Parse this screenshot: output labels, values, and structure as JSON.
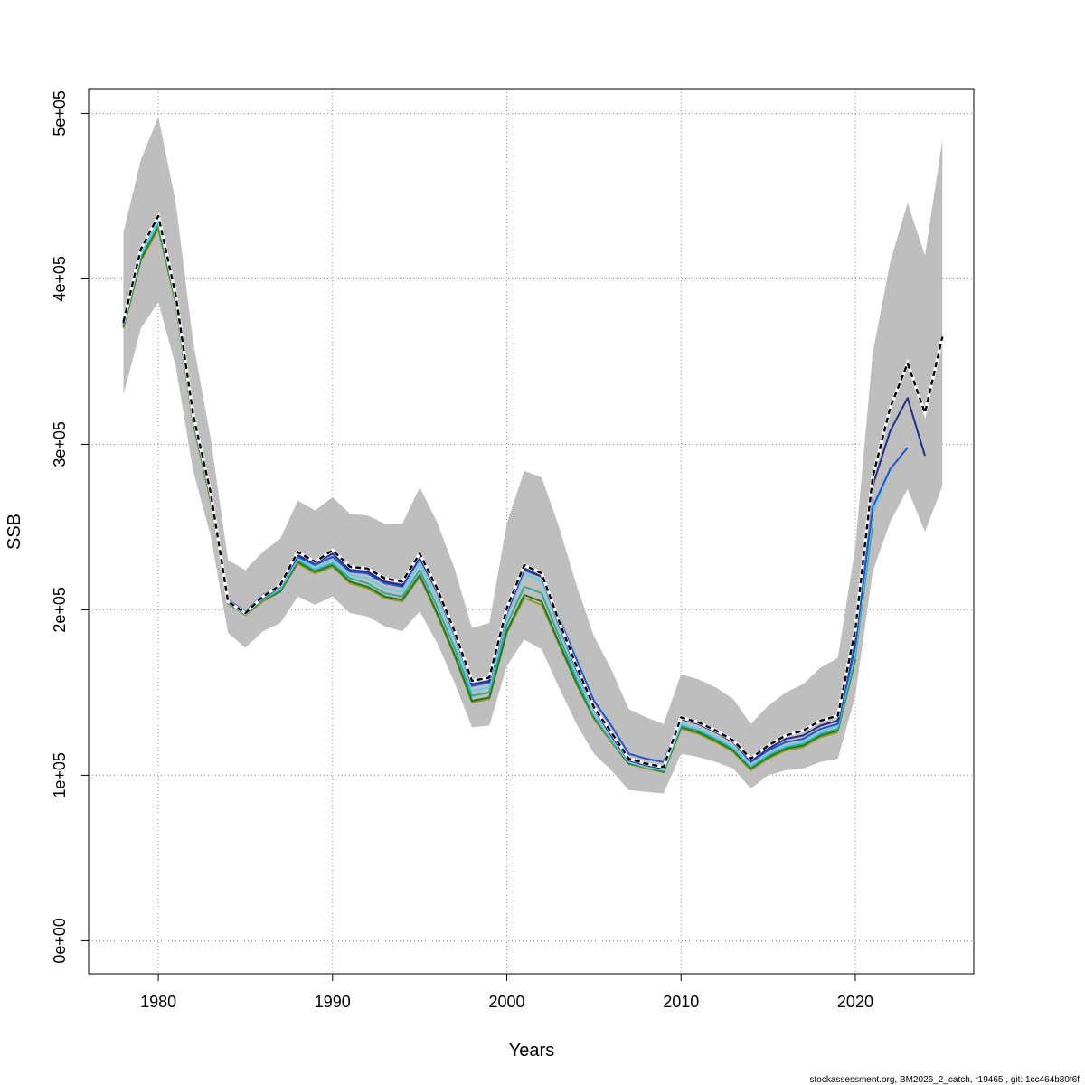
{
  "chart_data": {
    "type": "line",
    "title": "",
    "xlabel": "Years",
    "ylabel": "SSB",
    "xlim": [
      1976,
      2026.8
    ],
    "ylim": [
      -20000,
      515000
    ],
    "x_ticks": [
      1980,
      1990,
      2000,
      2010,
      2020
    ],
    "x_tick_labels": [
      "1980",
      "1990",
      "2000",
      "2010",
      "2020"
    ],
    "y_ticks": [
      0,
      100000,
      200000,
      300000,
      400000,
      500000
    ],
    "y_tick_labels": [
      "0e+00",
      "1e+05",
      "2e+05",
      "3e+05",
      "4e+05",
      "5e+05"
    ],
    "grid": true,
    "footer": "stockassessment.org, BM2026_2_catch, r19465 , git: 1cc464b80f6f",
    "confidence_band": {
      "name": "confidence interval",
      "color": "#bebebe",
      "x": [
        1978,
        1979,
        1980,
        1981,
        1982,
        1983,
        1984,
        1985,
        1986,
        1987,
        1988,
        1989,
        1990,
        1991,
        1992,
        1993,
        1994,
        1995,
        1996,
        1997,
        1998,
        1999,
        2000,
        2001,
        2002,
        2003,
        2004,
        2005,
        2006,
        2007,
        2008,
        2009,
        2010,
        2011,
        2012,
        2013,
        2014,
        2015,
        2016,
        2017,
        2018,
        2019,
        2020,
        2021,
        2022,
        2023,
        2024,
        2025
      ],
      "upper": [
        428000,
        472000,
        498000,
        446000,
        362000,
        304000,
        230000,
        224000,
        235000,
        243000,
        266000,
        260000,
        268000,
        258000,
        257000,
        252000,
        252000,
        274000,
        253000,
        225000,
        189000,
        192000,
        252000,
        284000,
        280000,
        250000,
        215000,
        184000,
        164000,
        140000,
        135000,
        131000,
        161000,
        158000,
        153000,
        146000,
        131000,
        142000,
        150000,
        155000,
        165000,
        171000,
        238000,
        355000,
        410000,
        446000,
        414000,
        484000
      ],
      "lower": [
        330000,
        370000,
        386000,
        347000,
        284000,
        245000,
        186000,
        177000,
        187000,
        192000,
        208000,
        203000,
        208000,
        198000,
        196000,
        190000,
        187000,
        199000,
        180000,
        156000,
        129000,
        130000,
        166000,
        182000,
        176000,
        153000,
        131000,
        113000,
        103000,
        91000,
        90000,
        89000,
        113000,
        111000,
        108000,
        104000,
        92000,
        100000,
        103000,
        104000,
        108000,
        110000,
        148000,
        223000,
        253000,
        273000,
        247000,
        275000
      ]
    },
    "series": [
      {
        "name": "estimate",
        "color": "#000000",
        "dash": "6,4",
        "x": [
          1978,
          1979,
          1980,
          1981,
          1982,
          1983,
          1984,
          1985,
          1986,
          1987,
          1988,
          1989,
          1990,
          1991,
          1992,
          1993,
          1994,
          1995,
          1996,
          1997,
          1998,
          1999,
          2000,
          2001,
          2002,
          2003,
          2004,
          2005,
          2006,
          2007,
          2008,
          2009,
          2010,
          2011,
          2012,
          2013,
          2014,
          2015,
          2016,
          2017,
          2018,
          2019,
          2020,
          2021,
          2022,
          2023,
          2024,
          2025
        ],
        "values": [
          374000,
          418000,
          438000,
          390000,
          318000,
          271000,
          205000,
          198000,
          208000,
          215000,
          235000,
          229000,
          236000,
          226000,
          225000,
          219000,
          217000,
          234000,
          213000,
          187000,
          157000,
          159000,
          201000,
          227000,
          222000,
          193000,
          166000,
          141000,
          126000,
          110000,
          107000,
          105000,
          135000,
          132000,
          127000,
          121000,
          110000,
          118000,
          124000,
          127000,
          133000,
          136000,
          188000,
          280000,
          322000,
          349000,
          319000,
          365000
        ]
      },
      {
        "name": "retro -1",
        "color": "#2a2a88",
        "dash": "",
        "x": [
          1978,
          1979,
          1980,
          1981,
          1982,
          1983,
          1984,
          1985,
          1986,
          1987,
          1988,
          1989,
          1990,
          1991,
          1992,
          1993,
          1994,
          1995,
          1996,
          1997,
          1998,
          1999,
          2000,
          2001,
          2002,
          2003,
          2004,
          2005,
          2006,
          2007,
          2008,
          2009,
          2010,
          2011,
          2012,
          2013,
          2014,
          2015,
          2016,
          2017,
          2018,
          2019,
          2020,
          2021,
          2022,
          2023,
          2024
        ],
        "values": [
          373000,
          417000,
          437000,
          389000,
          317000,
          270000,
          205000,
          198000,
          207000,
          214000,
          233000,
          228000,
          234000,
          224000,
          223000,
          217000,
          215000,
          232000,
          211000,
          185000,
          155000,
          157000,
          199000,
          225000,
          220000,
          191000,
          164000,
          140000,
          124000,
          109000,
          106000,
          104000,
          134000,
          131000,
          126000,
          120000,
          109000,
          116000,
          122000,
          124000,
          130000,
          133000,
          183000,
          275000,
          308000,
          328000,
          293000
        ]
      },
      {
        "name": "retro -2",
        "color": "#2255cc",
        "dash": "",
        "x": [
          1978,
          1979,
          1980,
          1981,
          1982,
          1983,
          1984,
          1985,
          1986,
          1987,
          1988,
          1989,
          1990,
          1991,
          1992,
          1993,
          1994,
          1995,
          1996,
          1997,
          1998,
          1999,
          2000,
          2001,
          2002,
          2003,
          2004,
          2005,
          2006,
          2007,
          2008,
          2009,
          2010,
          2011,
          2012,
          2013,
          2014,
          2015,
          2016,
          2017,
          2018,
          2019,
          2020,
          2021,
          2022,
          2023
        ],
        "values": [
          373000,
          417000,
          437000,
          389000,
          317000,
          270000,
          206000,
          199000,
          209000,
          215000,
          232000,
          227000,
          232000,
          223000,
          222000,
          216000,
          214000,
          231000,
          211000,
          188000,
          154000,
          156000,
          198000,
          224000,
          220000,
          195000,
          170000,
          145000,
          130000,
          113000,
          110000,
          108000,
          134000,
          131000,
          126000,
          120000,
          108000,
          115000,
          120000,
          122000,
          128000,
          131000,
          178000,
          262000,
          285000,
          298000
        ]
      },
      {
        "name": "retro -3",
        "color": "#66ccee",
        "dash": "",
        "x": [
          1978,
          1979,
          1980,
          1981,
          1982,
          1983,
          1984,
          1985,
          1986,
          1987,
          1988,
          1989,
          1990,
          1991,
          1992,
          1993,
          1994,
          1995,
          1996,
          1997,
          1998,
          1999,
          2000,
          2001,
          2002,
          2003,
          2004,
          2005,
          2006,
          2007,
          2008,
          2009,
          2010,
          2011,
          2012,
          2013,
          2014,
          2015,
          2016,
          2017,
          2018,
          2019,
          2020,
          2021,
          2022
        ],
        "values": [
          372000,
          415000,
          435000,
          388000,
          316000,
          269000,
          205000,
          198000,
          207000,
          213000,
          231000,
          225000,
          230000,
          221000,
          219000,
          213000,
          211000,
          228000,
          207000,
          182000,
          151000,
          153000,
          196000,
          222000,
          217000,
          189000,
          161000,
          137000,
          122000,
          108000,
          105000,
          103000,
          131000,
          128000,
          123000,
          117000,
          106000,
          113000,
          118000,
          120000,
          126000,
          130000,
          175000,
          258000,
          285000
        ]
      },
      {
        "name": "retro -4",
        "color": "#33aa99",
        "dash": "",
        "x": [
          1978,
          1979,
          1980,
          1981,
          1982,
          1983,
          1984,
          1985,
          1986,
          1987,
          1988,
          1989,
          1990,
          1991,
          1992,
          1993,
          1994,
          1995,
          1996,
          1997,
          1998,
          1999,
          2000,
          2001,
          2002,
          2003,
          2004,
          2005,
          2006,
          2007,
          2008,
          2009,
          2010,
          2011,
          2012,
          2013,
          2014,
          2015,
          2016,
          2017,
          2018,
          2019,
          2020,
          2021
        ],
        "values": [
          372000,
          414000,
          433000,
          387000,
          315000,
          268000,
          205000,
          198000,
          206000,
          212000,
          230000,
          224000,
          228000,
          219000,
          216000,
          210000,
          208000,
          224000,
          202000,
          177000,
          148000,
          150000,
          191000,
          214000,
          210000,
          184000,
          158000,
          136000,
          121000,
          108000,
          105000,
          103000,
          130000,
          127000,
          122000,
          116000,
          105000,
          112000,
          117000,
          119000,
          125000,
          128000,
          172000,
          252000
        ]
      },
      {
        "name": "retro -5",
        "color": "#1f7a1f",
        "dash": "",
        "x": [
          1978,
          1979,
          1980,
          1981,
          1982,
          1983,
          1984,
          1985,
          1986,
          1987,
          1988,
          1989,
          1990,
          1991,
          1992,
          1993,
          1994,
          1995,
          1996,
          1997,
          1998,
          1999,
          2000,
          2001,
          2002,
          2003,
          2004,
          2005,
          2006,
          2007,
          2008,
          2009,
          2010,
          2011,
          2012,
          2013,
          2014,
          2015,
          2016,
          2017,
          2018,
          2019,
          2020
        ],
        "values": [
          371000,
          412000,
          432000,
          386000,
          314000,
          267000,
          204000,
          197000,
          206000,
          211000,
          229000,
          223000,
          227000,
          217000,
          214000,
          208000,
          206000,
          221000,
          198000,
          173000,
          145000,
          147000,
          187000,
          209000,
          205000,
          180000,
          156000,
          135000,
          121000,
          107000,
          105000,
          102000,
          129000,
          126000,
          121000,
          115000,
          104000,
          111000,
          116000,
          118000,
          124000,
          127000,
          170000
        ]
      },
      {
        "name": "retro -6",
        "color": "#999922",
        "dash": "",
        "x": [
          1978,
          1979,
          1980,
          1981,
          1982,
          1983,
          1984,
          1985,
          1986,
          1987,
          1988,
          1989,
          1990,
          1991,
          1992,
          1993,
          1994,
          1995,
          1996,
          1997,
          1998,
          1999,
          2000,
          2001,
          2002,
          2003,
          2004,
          2005,
          2006,
          2007,
          2008,
          2009,
          2010,
          2011,
          2012,
          2013,
          2014,
          2015,
          2016,
          2017,
          2018,
          2019
        ],
        "values": [
          370000,
          411000,
          430000,
          385000,
          313000,
          266000,
          204000,
          197000,
          205000,
          211000,
          228000,
          222000,
          226000,
          216000,
          213000,
          207000,
          205000,
          220000,
          197000,
          172000,
          144000,
          146000,
          186000,
          207000,
          203000,
          179000,
          155000,
          134000,
          120000,
          107000,
          104000,
          102000,
          128000,
          125000,
          120000,
          114000,
          103000,
          110000,
          115000,
          117000,
          123000,
          126000
        ]
      }
    ]
  }
}
